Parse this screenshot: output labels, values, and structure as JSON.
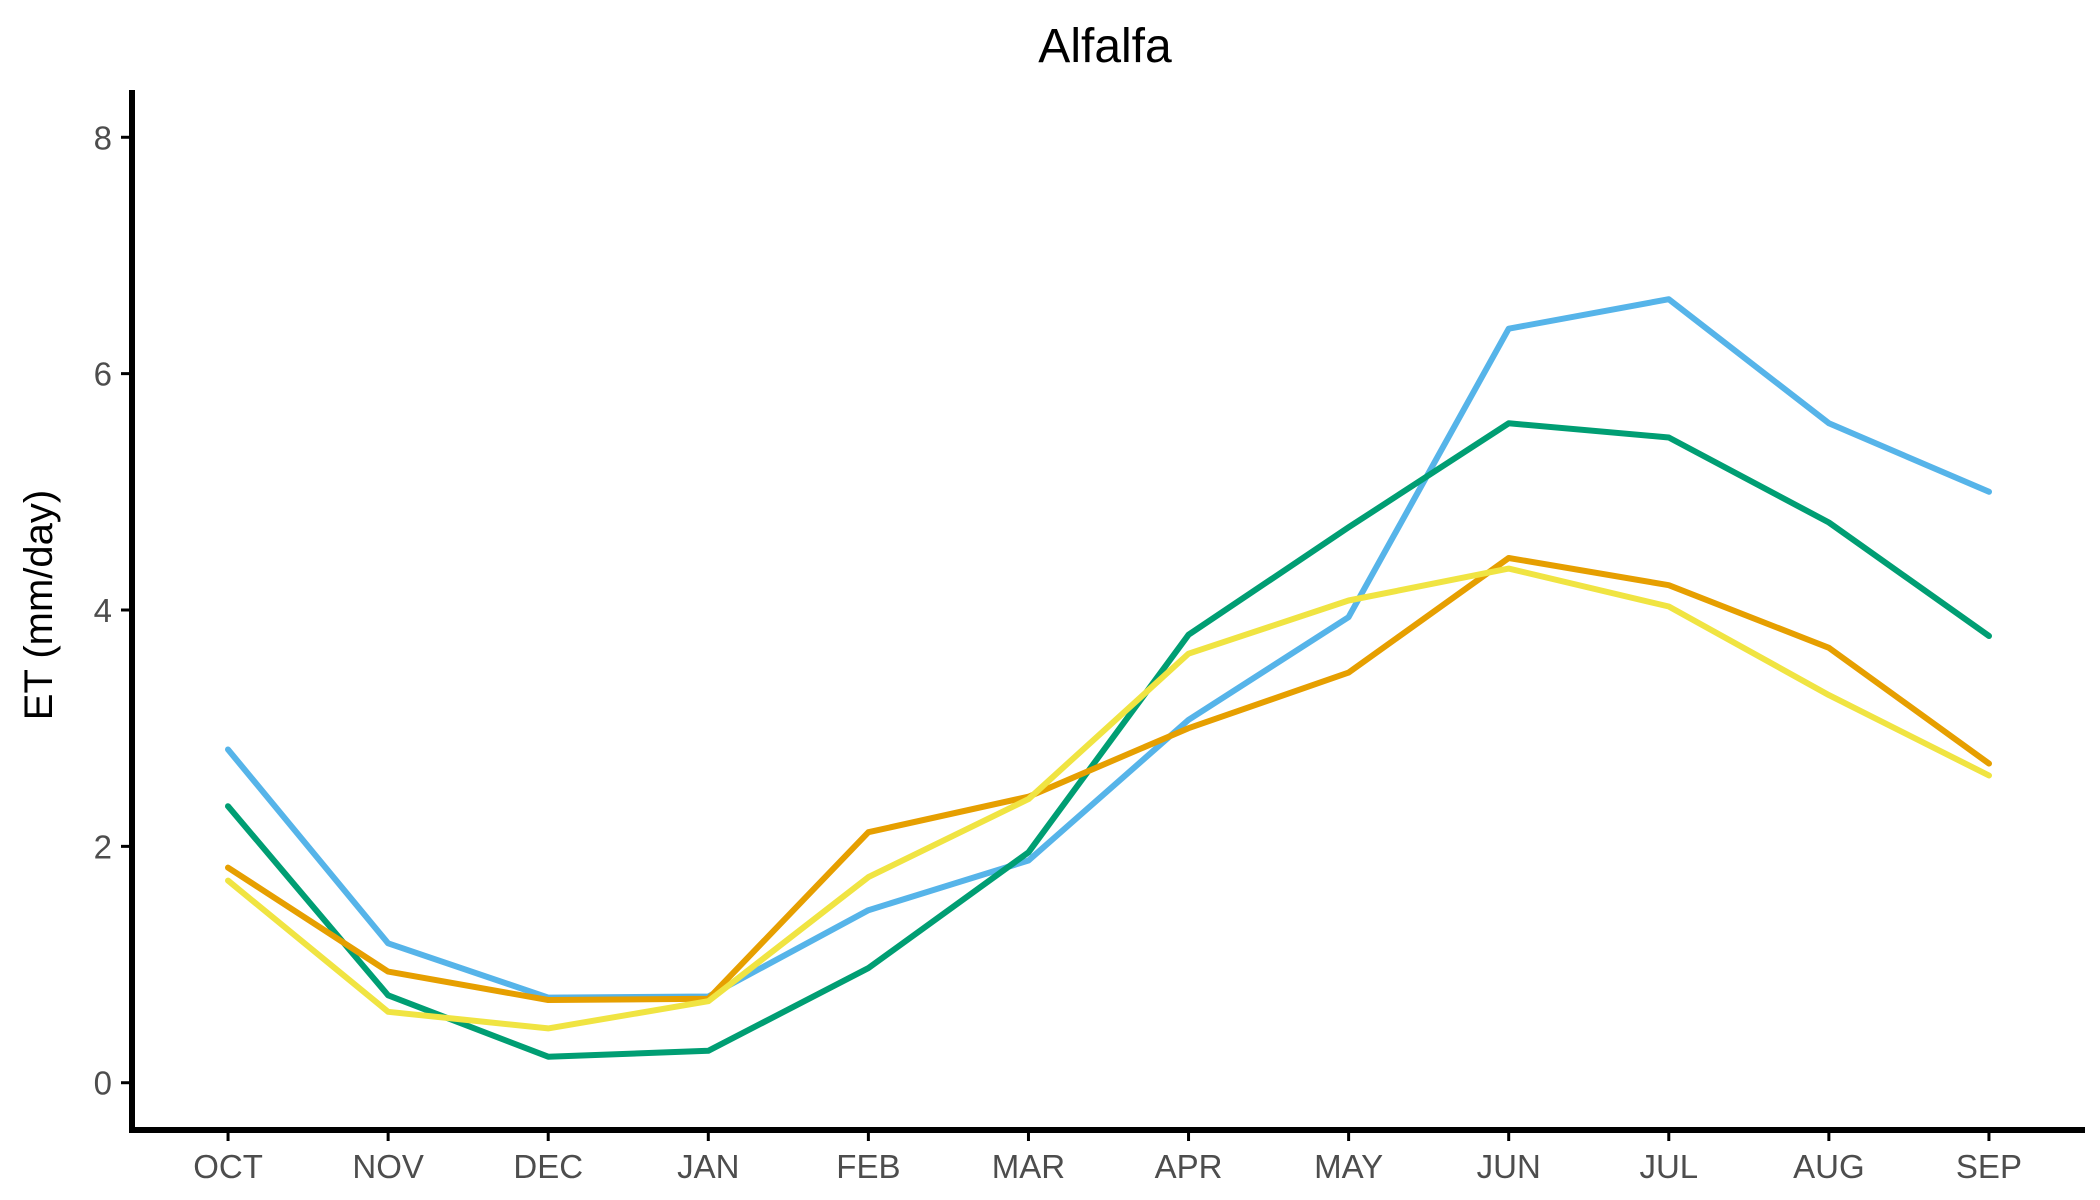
{
  "chart_data": {
    "type": "line",
    "title": "Alfalfa",
    "xlabel": "",
    "ylabel": "ET (mm/day)",
    "categories": [
      "OCT",
      "NOV",
      "DEC",
      "JAN",
      "FEB",
      "MAR",
      "APR",
      "MAY",
      "JUN",
      "JUL",
      "AUG",
      "SEP"
    ],
    "yticks": [
      "0",
      "2",
      "4",
      "6",
      "8"
    ],
    "ylim": [
      -0.4,
      8.4
    ],
    "grid": false,
    "legend": "none",
    "series": [
      {
        "color": "#56B4E9",
        "values": [
          2.82,
          1.18,
          0.72,
          0.73,
          1.46,
          1.88,
          3.07,
          3.94,
          6.38,
          6.63,
          5.58,
          5.0
        ]
      },
      {
        "color": "#009E73",
        "values": [
          2.34,
          0.74,
          0.22,
          0.27,
          0.97,
          1.95,
          3.79,
          4.7,
          5.58,
          5.46,
          4.74,
          3.78
        ]
      },
      {
        "color": "#E69F00",
        "values": [
          1.82,
          0.94,
          0.7,
          0.71,
          2.12,
          2.42,
          3.0,
          3.47,
          4.44,
          4.21,
          3.68,
          2.7
        ]
      },
      {
        "color": "#F0E442",
        "values": [
          1.71,
          0.6,
          0.46,
          0.69,
          1.74,
          2.4,
          3.63,
          4.08,
          4.35,
          4.03,
          3.28,
          2.6
        ]
      }
    ]
  }
}
